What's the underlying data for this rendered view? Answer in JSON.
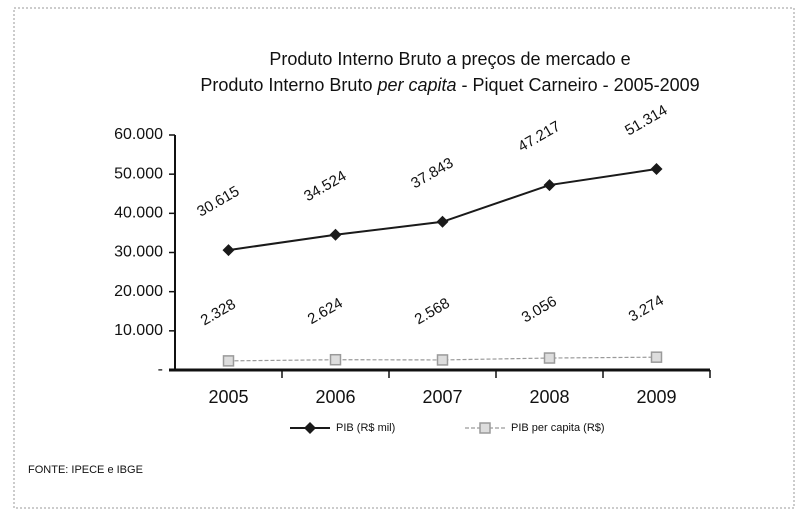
{
  "chart_data": {
    "type": "line",
    "title": "Produto Interno Bruto a preços de mercado  e",
    "subtitle_parts": [
      "Produto Interno Bruto ",
      "per capita",
      " - Piquet Carneiro - 2005-2009"
    ],
    "categories": [
      "2005",
      "2006",
      "2007",
      "2008",
      "2009"
    ],
    "series": [
      {
        "name": "PIB (R$ mil)",
        "color": "#1a1a1a",
        "marker": "diamond",
        "values": [
          30615,
          34524,
          37843,
          47217,
          51314
        ],
        "value_labels": [
          "30.615",
          "34.524",
          "37.843",
          "47.217",
          "51.314"
        ]
      },
      {
        "name": "PIB per capita (R$)",
        "color": "#9a9a9a",
        "marker": "square",
        "values": [
          2328,
          2624,
          2568,
          3056,
          3274
        ],
        "value_labels": [
          "2.328",
          "2.624",
          "2.568",
          "3.056",
          "3.274"
        ]
      }
    ],
    "ylim": [
      0,
      60000
    ],
    "yticks": [
      {
        "value": 0,
        "label": "-"
      },
      {
        "value": 10000,
        "label": "10.000"
      },
      {
        "value": 20000,
        "label": "20.000"
      },
      {
        "value": 30000,
        "label": "30.000"
      },
      {
        "value": 40000,
        "label": "40.000"
      },
      {
        "value": 50000,
        "label": "50.000"
      },
      {
        "value": 60000,
        "label": "60.000"
      }
    ],
    "grid": false,
    "legend": "bottom",
    "source": "FONTE: IPECE e IBGE"
  }
}
